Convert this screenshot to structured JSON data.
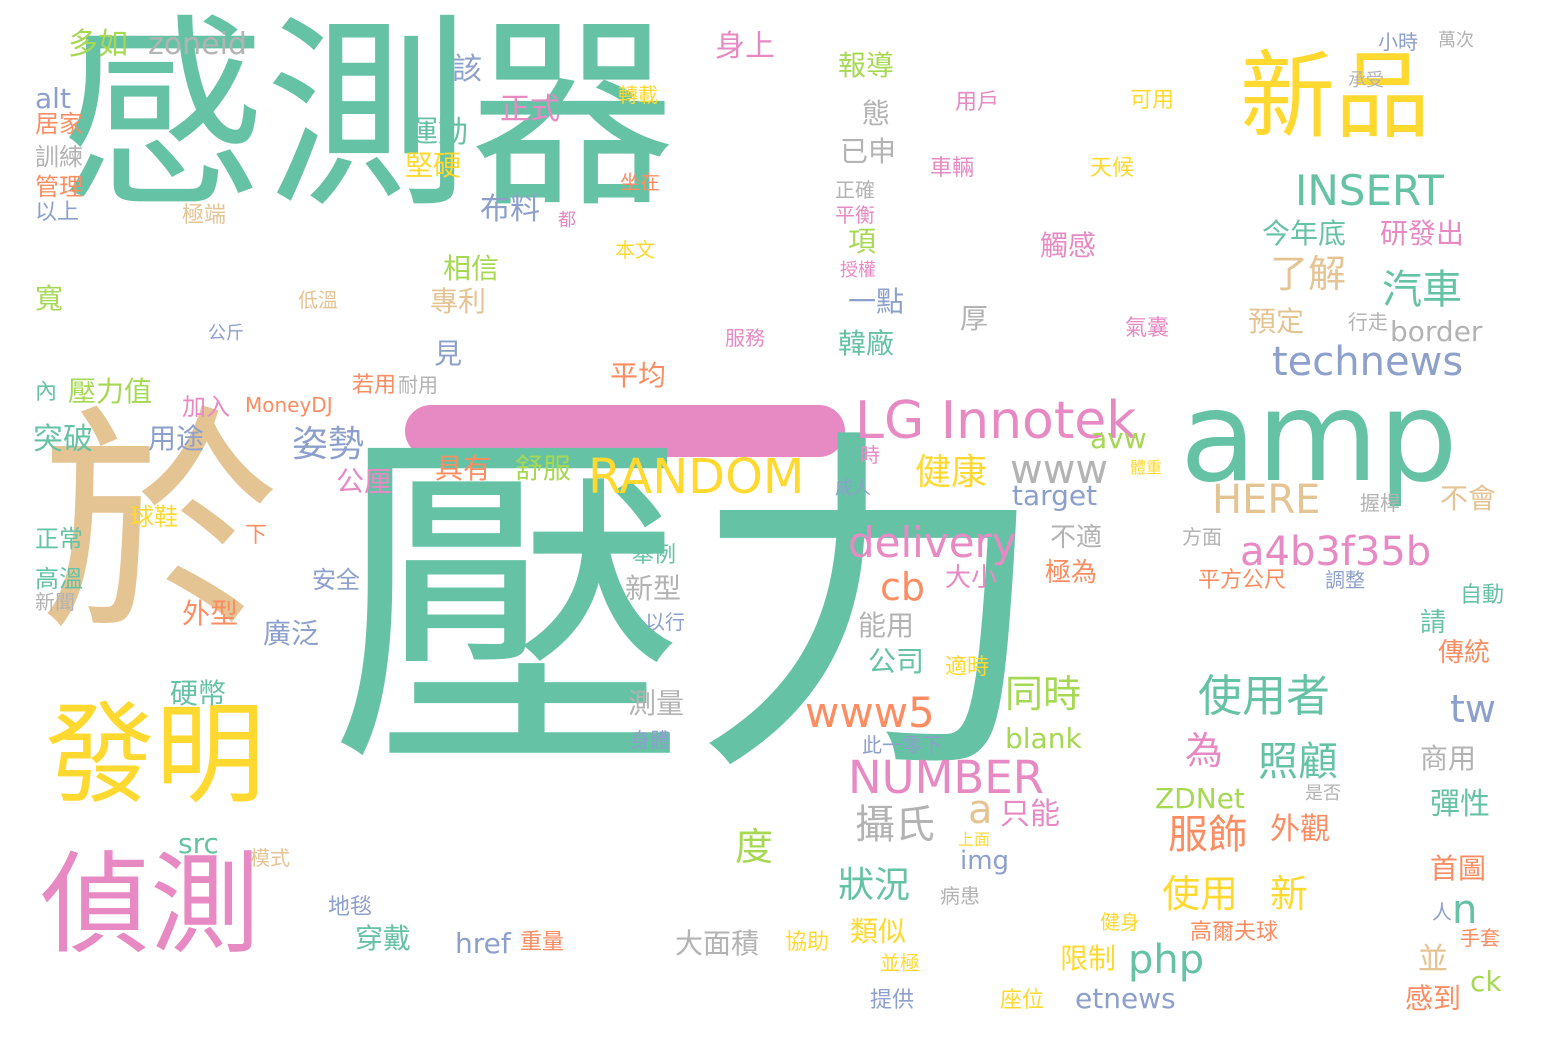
{
  "colors": {
    "teal": "#66c2a5",
    "orange": "#fc8d62",
    "blue": "#8da0cb",
    "pink": "#e78ac3",
    "green": "#a6d854",
    "yellow": "#ffd92f",
    "tan": "#e5c494",
    "gray": "#b3b3b3"
  },
  "words": [
    {
      "text": "感測器",
      "color": "teal"
    },
    {
      "text": "壓力",
      "color": "teal"
    },
    {
      "text": "於",
      "color": "tan"
    },
    {
      "text": "amp",
      "color": "teal"
    },
    {
      "text": "偵測",
      "color": "pink"
    },
    {
      "text": "發明",
      "color": "yellow"
    },
    {
      "text": "新品",
      "color": "yellow"
    },
    {
      "text": "LG Innotek",
      "color": "pink"
    },
    {
      "text": "RANDOM",
      "color": "yellow"
    },
    {
      "text": "technews",
      "color": "blue"
    },
    {
      "text": "INSERT",
      "color": "teal"
    },
    {
      "text": "a4b3f35b",
      "color": "pink"
    },
    {
      "text": "delivery",
      "color": "pink"
    },
    {
      "text": "HERE",
      "color": "tan"
    },
    {
      "text": "www",
      "color": "gray"
    },
    {
      "text": "NUMBER",
      "color": "pink"
    },
    {
      "text": "www5",
      "color": "orange"
    },
    {
      "text": "姿勢",
      "color": "blue"
    },
    {
      "text": "健康",
      "color": "yellow"
    },
    {
      "text": "使用者",
      "color": "teal"
    },
    {
      "text": "同時",
      "color": "green"
    },
    {
      "text": "照顧",
      "color": "teal"
    },
    {
      "text": "服飾",
      "color": "orange"
    },
    {
      "text": "使用",
      "color": "yellow"
    },
    {
      "text": "新",
      "color": "yellow"
    },
    {
      "text": "狀況",
      "color": "teal"
    },
    {
      "text": "攝氏",
      "color": "gray"
    },
    {
      "text": "php",
      "color": "teal"
    },
    {
      "text": "了解",
      "color": "tan"
    },
    {
      "text": "汽車",
      "color": "teal"
    },
    {
      "text": "cb",
      "color": "orange"
    },
    {
      "text": "度",
      "color": "green"
    },
    {
      "text": "為",
      "color": "pink"
    },
    {
      "text": "tw",
      "color": "blue"
    },
    {
      "text": "n",
      "color": "teal"
    },
    {
      "text": "a",
      "color": "tan"
    },
    {
      "text": "只能",
      "color": "pink"
    },
    {
      "text": "外觀",
      "color": "orange"
    },
    {
      "text": "今年底",
      "color": "teal"
    },
    {
      "text": "研發出",
      "color": "pink"
    },
    {
      "text": "布料",
      "color": "blue"
    },
    {
      "text": "運動",
      "color": "teal"
    },
    {
      "text": "正式",
      "color": "pink"
    },
    {
      "text": "堅硬",
      "color": "yellow"
    },
    {
      "text": "border",
      "color": "gray"
    },
    {
      "text": "預定",
      "color": "tan"
    },
    {
      "text": "zoneid",
      "color": "gray"
    },
    {
      "text": "多如",
      "color": "green"
    },
    {
      "text": "身上",
      "color": "pink"
    },
    {
      "text": "報導",
      "color": "green"
    },
    {
      "text": "相信",
      "color": "green"
    },
    {
      "text": "專利",
      "color": "tan"
    },
    {
      "text": "該",
      "color": "blue"
    },
    {
      "text": "態",
      "color": "gray"
    },
    {
      "text": "已申",
      "color": "gray"
    },
    {
      "text": "項",
      "color": "green"
    },
    {
      "text": "一點",
      "color": "blue"
    },
    {
      "text": "韓廠",
      "color": "teal"
    },
    {
      "text": "觸感",
      "color": "pink"
    },
    {
      "text": "厚",
      "color": "gray"
    },
    {
      "text": "見",
      "color": "blue"
    },
    {
      "text": "平均",
      "color": "orange"
    },
    {
      "text": "具有",
      "color": "orange"
    },
    {
      "text": "舒服",
      "color": "green"
    },
    {
      "text": "公厘",
      "color": "pink"
    },
    {
      "text": "用途",
      "color": "blue"
    },
    {
      "text": "壓力值",
      "color": "green"
    },
    {
      "text": "突破",
      "color": "teal"
    },
    {
      "text": "avw",
      "color": "green"
    },
    {
      "text": "target",
      "color": "blue"
    },
    {
      "text": "不適",
      "color": "gray"
    },
    {
      "text": "極為",
      "color": "orange"
    },
    {
      "text": "大小",
      "color": "pink"
    },
    {
      "text": "新型",
      "color": "gray"
    },
    {
      "text": "外型",
      "color": "orange"
    },
    {
      "text": "廣泛",
      "color": "blue"
    },
    {
      "text": "能用",
      "color": "gray"
    },
    {
      "text": "公司",
      "color": "teal"
    },
    {
      "text": "硬幣",
      "color": "teal"
    },
    {
      "text": "測量",
      "color": "gray"
    },
    {
      "text": "blank",
      "color": "green"
    },
    {
      "text": "ZDNet",
      "color": "green"
    },
    {
      "text": "src",
      "color": "teal"
    },
    {
      "text": "img",
      "color": "blue"
    },
    {
      "text": "類似",
      "color": "yellow"
    },
    {
      "text": "穿戴",
      "color": "teal"
    },
    {
      "text": "href",
      "color": "blue"
    },
    {
      "text": "大面積",
      "color": "gray"
    },
    {
      "text": "限制",
      "color": "yellow"
    },
    {
      "text": "etnews",
      "color": "blue"
    },
    {
      "text": "並",
      "color": "tan"
    },
    {
      "text": "感到",
      "color": "orange"
    },
    {
      "text": "ck",
      "color": "green"
    },
    {
      "text": "傳統",
      "color": "orange"
    },
    {
      "text": "請",
      "color": "teal"
    },
    {
      "text": "商用",
      "color": "gray"
    },
    {
      "text": "彈性",
      "color": "teal"
    },
    {
      "text": "首圖",
      "color": "orange"
    },
    {
      "text": "不會",
      "color": "tan"
    },
    {
      "text": "alt",
      "color": "blue"
    },
    {
      "text": "居家",
      "color": "orange"
    },
    {
      "text": "訓練",
      "color": "gray"
    },
    {
      "text": "管理",
      "color": "orange"
    },
    {
      "text": "以上",
      "color": "blue"
    },
    {
      "text": "寬",
      "color": "green"
    },
    {
      "text": "內",
      "color": "teal"
    },
    {
      "text": "正常",
      "color": "teal"
    },
    {
      "text": "高溫",
      "color": "teal"
    },
    {
      "text": "新聞",
      "color": "gray"
    },
    {
      "text": "安全",
      "color": "blue"
    },
    {
      "text": "加入",
      "color": "pink"
    },
    {
      "text": "MoneyDJ",
      "color": "orange"
    },
    {
      "text": "若用",
      "color": "orange"
    },
    {
      "text": "耐用",
      "color": "gray"
    },
    {
      "text": "球鞋",
      "color": "yellow"
    },
    {
      "text": "下",
      "color": "orange"
    },
    {
      "text": "模式",
      "color": "tan"
    },
    {
      "text": "地毯",
      "color": "blue"
    },
    {
      "text": "重量",
      "color": "orange"
    },
    {
      "text": "協助",
      "color": "yellow"
    },
    {
      "text": "轉載",
      "color": "yellow"
    },
    {
      "text": "坐在",
      "color": "orange"
    },
    {
      "text": "本文",
      "color": "yellow"
    },
    {
      "text": "都",
      "color": "pink"
    },
    {
      "text": "極端",
      "color": "tan"
    },
    {
      "text": "低溫",
      "color": "tan"
    },
    {
      "text": "公斤",
      "color": "blue"
    },
    {
      "text": "服務",
      "color": "pink"
    },
    {
      "text": "用戶",
      "color": "pink"
    },
    {
      "text": "可用",
      "color": "yellow"
    },
    {
      "text": "承受",
      "color": "gray"
    },
    {
      "text": "小時",
      "color": "blue"
    },
    {
      "text": "萬次",
      "color": "gray"
    },
    {
      "text": "車輛",
      "color": "pink"
    },
    {
      "text": "天候",
      "color": "yellow"
    },
    {
      "text": "正確",
      "color": "gray"
    },
    {
      "text": "平衡",
      "color": "pink"
    },
    {
      "text": "授權",
      "color": "pink"
    },
    {
      "text": "氣囊",
      "color": "pink"
    },
    {
      "text": "行走",
      "color": "gray"
    },
    {
      "text": "時",
      "color": "pink"
    },
    {
      "text": "體重",
      "color": "yellow"
    },
    {
      "text": "成人",
      "color": "blue"
    },
    {
      "text": "握桿",
      "color": "gray"
    },
    {
      "text": "方面",
      "color": "gray"
    },
    {
      "text": "平方公尺",
      "color": "orange"
    },
    {
      "text": "調整",
      "color": "blue"
    },
    {
      "text": "自動",
      "color": "teal"
    },
    {
      "text": "舉例",
      "color": "teal"
    },
    {
      "text": "以行",
      "color": "blue"
    },
    {
      "text": "適時",
      "color": "yellow"
    },
    {
      "text": "身體",
      "color": "blue"
    },
    {
      "text": "此一零下",
      "color": "blue"
    },
    {
      "text": "上面",
      "color": "yellow"
    },
    {
      "text": "是否",
      "color": "gray"
    },
    {
      "text": "病患",
      "color": "gray"
    },
    {
      "text": "健身",
      "color": "yellow"
    },
    {
      "text": "高爾夫球",
      "color": "orange"
    },
    {
      "text": "人",
      "color": "blue"
    },
    {
      "text": "手套",
      "color": "orange"
    },
    {
      "text": "並極",
      "color": "yellow"
    },
    {
      "text": "提供",
      "color": "blue"
    },
    {
      "text": "座位",
      "color": "yellow"
    }
  ]
}
